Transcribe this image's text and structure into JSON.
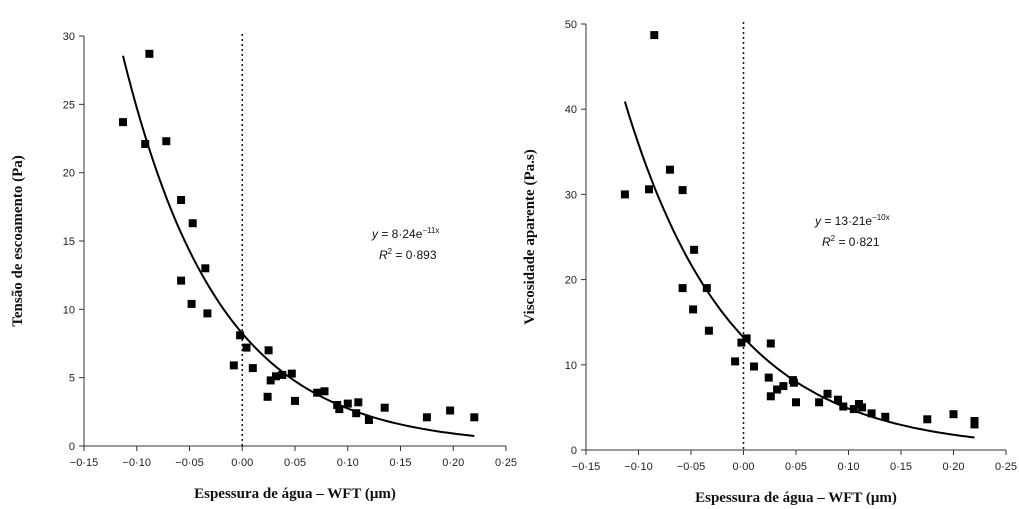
{
  "chart_data": [
    {
      "type": "scatter",
      "title": "",
      "xlabel": "Espessura de água – WFT (μm)",
      "ylabel": "Tensão de escoamento (Pa)",
      "xlim": [
        -0.15,
        0.25
      ],
      "ylim": [
        0,
        30
      ],
      "xticks": [
        -0.15,
        -0.1,
        -0.05,
        0.0,
        0.05,
        0.1,
        0.15,
        0.2,
        0.25
      ],
      "xtick_labels": [
        "−0·15",
        "−0·10",
        "−0·05",
        "0·00",
        "0·05",
        "0·10",
        "0·15",
        "0·20",
        "0·25"
      ],
      "yticks": [
        0,
        5,
        10,
        15,
        20,
        25,
        30
      ],
      "ytick_labels": [
        "0",
        "5",
        "10",
        "15",
        "20",
        "25",
        "30"
      ],
      "vline_x": 0.0,
      "annotation": {
        "y_label": "y",
        "equation": " = 8·24e",
        "exponent": "−11x",
        "r2_label": "R",
        "r2_sup": "2",
        "r2_value": " = 0·893"
      },
      "fit": {
        "a": 8.24,
        "b": -11,
        "x_range": [
          -0.113,
          0.22
        ]
      },
      "points": [
        {
          "x": -0.113,
          "y": 23.7
        },
        {
          "x": -0.088,
          "y": 28.7
        },
        {
          "x": -0.092,
          "y": 22.1
        },
        {
          "x": -0.072,
          "y": 22.3
        },
        {
          "x": -0.058,
          "y": 18.0
        },
        {
          "x": -0.047,
          "y": 16.3
        },
        {
          "x": -0.058,
          "y": 12.1
        },
        {
          "x": -0.035,
          "y": 13.0
        },
        {
          "x": -0.048,
          "y": 10.4
        },
        {
          "x": -0.033,
          "y": 9.7
        },
        {
          "x": -0.008,
          "y": 5.9
        },
        {
          "x": -0.002,
          "y": 8.1
        },
        {
          "x": 0.004,
          "y": 7.2
        },
        {
          "x": 0.01,
          "y": 5.7
        },
        {
          "x": 0.025,
          "y": 7.0
        },
        {
          "x": 0.027,
          "y": 4.8
        },
        {
          "x": 0.032,
          "y": 5.1
        },
        {
          "x": 0.038,
          "y": 5.2
        },
        {
          "x": 0.047,
          "y": 5.3
        },
        {
          "x": 0.024,
          "y": 3.6
        },
        {
          "x": 0.05,
          "y": 3.3
        },
        {
          "x": 0.071,
          "y": 3.9
        },
        {
          "x": 0.078,
          "y": 4.0
        },
        {
          "x": 0.09,
          "y": 3.0
        },
        {
          "x": 0.092,
          "y": 2.7
        },
        {
          "x": 0.1,
          "y": 3.1
        },
        {
          "x": 0.108,
          "y": 2.4
        },
        {
          "x": 0.11,
          "y": 3.2
        },
        {
          "x": 0.12,
          "y": 1.9
        },
        {
          "x": 0.135,
          "y": 2.8
        },
        {
          "x": 0.175,
          "y": 2.1
        },
        {
          "x": 0.197,
          "y": 2.6
        },
        {
          "x": 0.22,
          "y": 2.1
        }
      ]
    },
    {
      "type": "scatter",
      "title": "",
      "xlabel": "Espessura de água – WFT (μm)",
      "ylabel": "Viscosidade aparente (Pa.s)",
      "xlim": [
        -0.15,
        0.25
      ],
      "ylim": [
        0,
        50
      ],
      "xticks": [
        -0.15,
        -0.1,
        -0.05,
        0.0,
        0.05,
        0.1,
        0.15,
        0.2,
        0.25
      ],
      "xtick_labels": [
        "−0·15",
        "−0·10",
        "−0·05",
        "0·00",
        "0·05",
        "0·10",
        "0·15",
        "0·20",
        "0·25"
      ],
      "yticks": [
        0,
        10,
        20,
        30,
        40,
        50
      ],
      "ytick_labels": [
        "0",
        "10",
        "20",
        "30",
        "40",
        "50"
      ],
      "vline_x": 0.0,
      "annotation": {
        "y_label": "y",
        "equation": " = 13·21e",
        "exponent": "−10x",
        "r2_label": "R",
        "r2_sup": "2",
        "r2_value": " = 0·821"
      },
      "fit": {
        "a": 13.21,
        "b": -10,
        "x_range": [
          -0.113,
          0.22
        ]
      },
      "points": [
        {
          "x": -0.113,
          "y": 30.0
        },
        {
          "x": -0.085,
          "y": 48.7
        },
        {
          "x": -0.09,
          "y": 30.6
        },
        {
          "x": -0.07,
          "y": 32.9
        },
        {
          "x": -0.058,
          "y": 30.5
        },
        {
          "x": -0.058,
          "y": 19.0
        },
        {
          "x": -0.047,
          "y": 23.5
        },
        {
          "x": -0.048,
          "y": 16.5
        },
        {
          "x": -0.035,
          "y": 19.0
        },
        {
          "x": -0.033,
          "y": 14.0
        },
        {
          "x": -0.008,
          "y": 10.4
        },
        {
          "x": -0.002,
          "y": 12.6
        },
        {
          "x": 0.003,
          "y": 13.1
        },
        {
          "x": 0.01,
          "y": 9.8
        },
        {
          "x": 0.026,
          "y": 12.5
        },
        {
          "x": 0.024,
          "y": 8.5
        },
        {
          "x": 0.026,
          "y": 6.3
        },
        {
          "x": 0.032,
          "y": 7.1
        },
        {
          "x": 0.038,
          "y": 7.5
        },
        {
          "x": 0.047,
          "y": 8.2
        },
        {
          "x": 0.048,
          "y": 7.9
        },
        {
          "x": 0.05,
          "y": 5.6
        },
        {
          "x": 0.072,
          "y": 5.6
        },
        {
          "x": 0.08,
          "y": 6.6
        },
        {
          "x": 0.09,
          "y": 5.9
        },
        {
          "x": 0.095,
          "y": 5.1
        },
        {
          "x": 0.105,
          "y": 4.8
        },
        {
          "x": 0.11,
          "y": 5.4
        },
        {
          "x": 0.113,
          "y": 5.0
        },
        {
          "x": 0.122,
          "y": 4.3
        },
        {
          "x": 0.135,
          "y": 3.9
        },
        {
          "x": 0.175,
          "y": 3.6
        },
        {
          "x": 0.2,
          "y": 4.2
        },
        {
          "x": 0.22,
          "y": 3.4
        },
        {
          "x": 0.22,
          "y": 3.0
        }
      ]
    }
  ]
}
